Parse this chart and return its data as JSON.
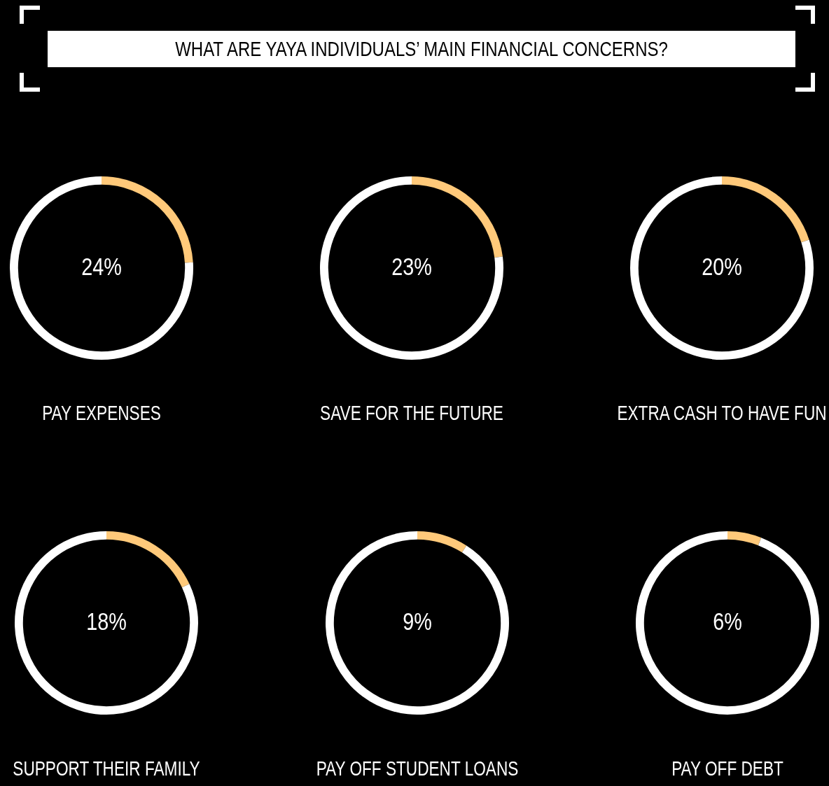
{
  "chart_data": [
    {
      "type": "other",
      "title": "WHAT ARE YAYA INDIVIDUALS’ MAIN FINANCIAL CONCERNS?"
    },
    {
      "type": "donut",
      "title": "PAY EXPENSES",
      "categories": [
        null,
        null
      ],
      "values": [
        24,
        76
      ],
      "colors": [
        "#ffc97a",
        "#ffffff"
      ],
      "value_labels": [
        "24%",
        null
      ]
    },
    {
      "type": "donut",
      "title": "SAVE FOR THE FUTURE",
      "categories": [
        null,
        null
      ],
      "values": [
        23,
        77
      ],
      "colors": [
        "#ffc97a",
        "#ffffff"
      ],
      "value_labels": [
        "23%",
        null
      ]
    },
    {
      "type": "donut",
      "title": "EXTRA CASH TO HAVE FUN",
      "categories": [
        null,
        null
      ],
      "values": [
        20,
        80
      ],
      "colors": [
        "#ffc97a",
        "#ffffff"
      ],
      "value_labels": [
        "20%",
        null
      ]
    },
    {
      "type": "donut",
      "title": "SUPPORT THEIR FAMILY",
      "categories": [
        null,
        null
      ],
      "values": [
        18,
        82
      ],
      "colors": [
        "#ffc97a",
        "#ffffff"
      ],
      "value_labels": [
        "18%",
        null
      ]
    },
    {
      "type": "donut",
      "title": "PAY OFF STUDENT LOANS",
      "categories": [
        null,
        null
      ],
      "values": [
        9,
        91
      ],
      "colors": [
        "#ffc97a",
        "#ffffff"
      ],
      "value_labels": [
        "9%",
        null
      ]
    },
    {
      "type": "donut",
      "title": "PAY OFF DEBT",
      "categories": [
        null,
        null
      ],
      "values": [
        6,
        94
      ],
      "colors": [
        "#ffc97a",
        "#ffffff"
      ],
      "value_labels": [
        "6%",
        null
      ]
    }
  ]
}
